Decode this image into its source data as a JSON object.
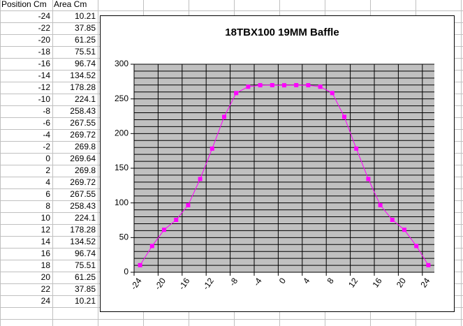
{
  "table": {
    "columns": [
      "Position Cm",
      "Area Cm"
    ],
    "rows": [
      [
        -24,
        10.21
      ],
      [
        -22,
        37.85
      ],
      [
        -20,
        61.25
      ],
      [
        -18,
        75.51
      ],
      [
        -16,
        96.74
      ],
      [
        -14,
        134.52
      ],
      [
        -12,
        178.28
      ],
      [
        -10,
        224.1
      ],
      [
        -8,
        258.43
      ],
      [
        -6,
        267.55
      ],
      [
        -4,
        269.72
      ],
      [
        -2,
        269.8
      ],
      [
        0,
        269.64
      ],
      [
        2,
        269.8
      ],
      [
        4,
        269.72
      ],
      [
        6,
        267.55
      ],
      [
        8,
        258.43
      ],
      [
        10,
        224.1
      ],
      [
        12,
        178.28
      ],
      [
        14,
        134.52
      ],
      [
        16,
        96.74
      ],
      [
        18,
        75.51
      ],
      [
        20,
        61.25
      ],
      [
        22,
        37.85
      ],
      [
        24,
        10.21
      ]
    ]
  },
  "chart_data": {
    "type": "line",
    "title": "18TBX100 19MM Baffle",
    "categories": [
      "-24",
      "-22",
      "-20",
      "-18",
      "-16",
      "-14",
      "-12",
      "-10",
      "-8",
      "-6",
      "-4",
      "-2",
      "0",
      "2",
      "4",
      "6",
      "8",
      "10",
      "12",
      "14",
      "16",
      "18",
      "20",
      "22",
      "24"
    ],
    "series": [
      {
        "name": "Area Cm",
        "color": "#ff00ff",
        "values": [
          10.21,
          37.85,
          61.25,
          75.51,
          96.74,
          134.52,
          178.28,
          224.1,
          258.43,
          267.55,
          269.72,
          269.8,
          269.64,
          269.8,
          269.72,
          267.55,
          258.43,
          224.1,
          178.28,
          134.52,
          96.74,
          75.51,
          61.25,
          37.85,
          10.21
        ]
      }
    ],
    "ylim": [
      0,
      300
    ],
    "yticks": [
      0,
      50,
      100,
      150,
      200,
      250,
      300
    ],
    "y_minor_step": 10,
    "x_interval": 2,
    "grid": true,
    "plot_background": "#c0c0c0",
    "legend": false
  }
}
